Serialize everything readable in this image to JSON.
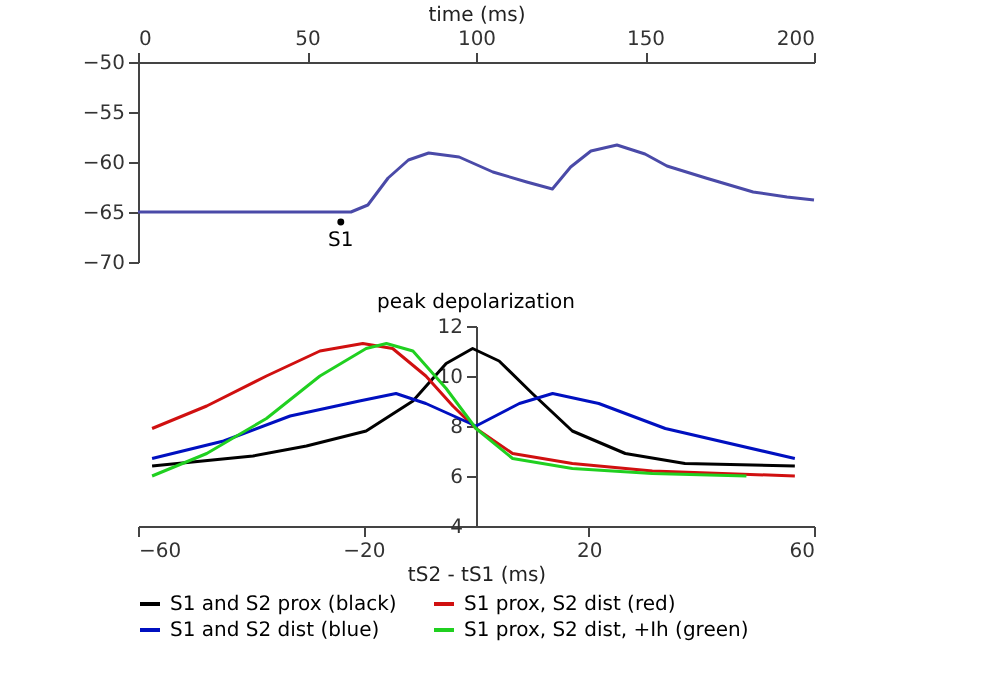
{
  "chart_data": [
    {
      "type": "line",
      "xlabel": "time (ms)",
      "xlim": [
        0,
        200
      ],
      "xticks": [
        0,
        50,
        100,
        150,
        200
      ],
      "ylim": [
        -70,
        -50
      ],
      "yticks": [
        -70,
        -65,
        -60,
        -55,
        -50
      ],
      "grid": false,
      "legend": false,
      "series": [
        {
          "color": "#4a4aa8",
          "x": [
            0,
            63,
            68,
            74,
            80,
            86,
            95,
            105,
            115,
            122.6,
            128,
            134,
            141.7,
            150,
            156.5,
            168,
            182,
            192,
            200
          ],
          "values": [
            -65,
            -65,
            -64.3,
            -61.6,
            -59.8,
            -59.1,
            -59.5,
            -61.0,
            -62.0,
            -62.7,
            -60.5,
            -58.9,
            -58.3,
            -59.2,
            -60.4,
            -61.6,
            -63.0,
            -63.5,
            -63.8
          ]
        }
      ],
      "annotations": [
        {
          "text": "S1",
          "x": 60,
          "y": -66
        }
      ]
    },
    {
      "type": "line",
      "title": "peak depolarization",
      "xlabel": "tS2 - tS1 (ms)",
      "xlim": [
        -60,
        60
      ],
      "xticks": [
        -60,
        -20,
        20,
        60
      ],
      "ylim": [
        4,
        12
      ],
      "yticks": [
        4,
        6,
        8,
        10,
        12
      ],
      "grid": false,
      "legend": "bottom",
      "series": [
        {
          "name": "S1 and S2 prox (black)",
          "color": "#000000",
          "x": [
            -57.5,
            -39.6,
            -30.1,
            -19.5,
            -11.2,
            -5.3,
            -0.6,
            4.1,
            10,
            17.1,
            26.5,
            37.1,
            56.6
          ],
          "values": [
            6.4,
            6.8,
            7.2,
            7.8,
            9.0,
            10.5,
            11.1,
            10.6,
            9.3,
            7.8,
            6.9,
            6.5,
            6.4
          ]
        },
        {
          "name": "S1 prox, S2 dist (red)",
          "color": "#d01010",
          "x": [
            -57.5,
            -47.8,
            -37.2,
            -27.7,
            -20.1,
            -14.8,
            -8.9,
            -4.1,
            0,
            6.5,
            17.1,
            31.3,
            56.6
          ],
          "values": [
            7.9,
            8.8,
            10.0,
            11.0,
            11.3,
            11.1,
            10.0,
            8.8,
            7.9,
            6.9,
            6.5,
            6.2,
            6.0
          ]
        },
        {
          "name": "S1 and S2 dist (blue)",
          "color": "#0010c0",
          "x": [
            -57.5,
            -44.8,
            -33.0,
            -20.7,
            -14.2,
            -8.9,
            0,
            7.7,
            13.6,
            21.8,
            33.6,
            56.6
          ],
          "values": [
            6.7,
            7.4,
            8.4,
            9.0,
            9.3,
            8.9,
            8.0,
            8.9,
            9.3,
            8.9,
            7.9,
            6.7
          ]
        },
        {
          "name": "S1 prox, S2 dist, +Ih (green)",
          "color": "#20d020",
          "x": [
            -57.5,
            -47.8,
            -37.2,
            -27.7,
            -19.5,
            -15.9,
            -11.2,
            -5.3,
            0,
            6.5,
            17.1,
            31.3,
            48.0
          ],
          "values": [
            6.0,
            6.9,
            8.3,
            10.0,
            11.1,
            11.3,
            11.0,
            9.5,
            7.9,
            6.7,
            6.3,
            6.1,
            6.0
          ]
        }
      ]
    }
  ]
}
